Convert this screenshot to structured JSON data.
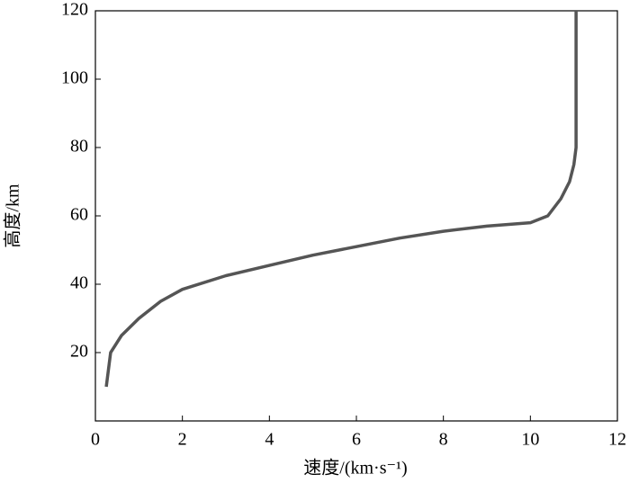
{
  "chart_data": {
    "type": "line",
    "xlabel": "速度/(km·s⁻¹)",
    "ylabel": "高度/km",
    "x": [
      0.25,
      0.3,
      0.35,
      0.6,
      1,
      1.5,
      2,
      3,
      4,
      5,
      6,
      7,
      8,
      9,
      10,
      10.4,
      10.7,
      10.9,
      11,
      11.05,
      11.05,
      11.05
    ],
    "values": [
      10,
      15,
      20,
      25,
      30,
      35,
      38.5,
      42.5,
      45.5,
      48.5,
      51,
      53.5,
      55.5,
      57,
      58,
      60,
      65,
      70,
      75,
      80,
      100,
      120
    ],
    "color": "#555555",
    "xlim": [
      0,
      12
    ],
    "xticks": [
      0,
      2,
      4,
      6,
      8,
      10,
      12
    ],
    "ylim": [
      0,
      120
    ],
    "yticks": [
      20,
      40,
      60,
      80,
      100,
      120
    ]
  }
}
